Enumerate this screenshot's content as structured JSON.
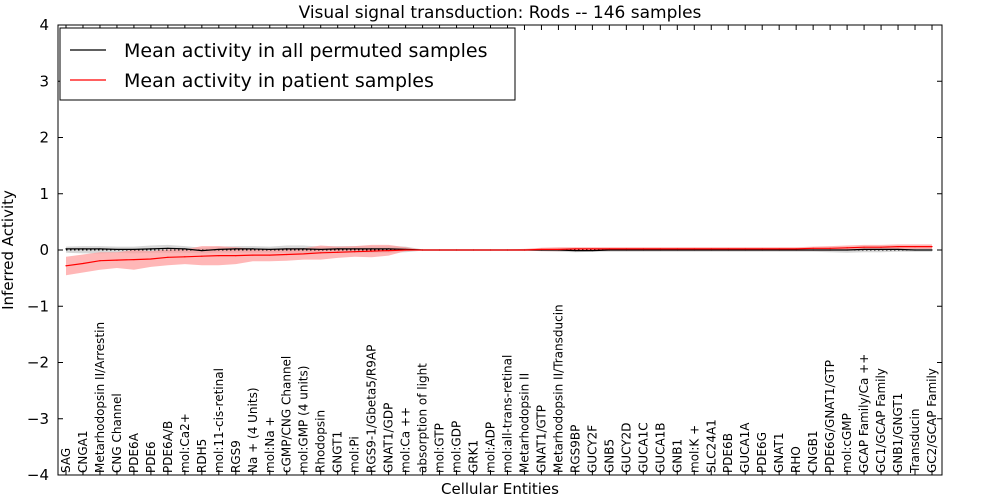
{
  "chart_data": {
    "type": "line",
    "title": "Visual signal transduction: Rods -- 146 samples",
    "xlabel": "Cellular Entities",
    "ylabel": "Inferred Activity",
    "ylim": [
      -4,
      4
    ],
    "yticks": [
      -4,
      -3,
      -2,
      -1,
      0,
      1,
      2,
      3,
      4
    ],
    "ytick_labels": [
      "−4",
      "−3",
      "−2",
      "−1",
      "0",
      "1",
      "2",
      "3",
      "4"
    ],
    "legend_position": "top-left",
    "categories": [
      "SAG",
      "CNGA1",
      "Metarhodopsin II/Arrestin",
      "CNG Channel",
      "PDE6A",
      "PDE6",
      "PDE6A/B",
      "mol:Ca2+",
      "RDH5",
      "mol:11-cis-retinal",
      "RGS9",
      "Na + (4 Units)",
      "mol:Na +",
      "cGMP/CNG Channel",
      "mol:GMP (4 units)",
      "Rhodopsin",
      "GNGT1",
      "mol:Pi",
      "RGS9-1/Gbeta5/R9AP",
      "GNAT1/GDP",
      "mol:Ca ++",
      "absorption of light",
      "mol:GTP",
      "mol:GDP",
      "GRK1",
      "mol:ADP",
      "mol:all-trans-retinal",
      "Metarhodopsin II",
      "GNAT1/GTP",
      "Metarhodopsin II/Transducin",
      "RGS9BP",
      "GUCY2F",
      "GNB5",
      "GUCY2D",
      "GUCA1C",
      "GUCA1B",
      "GNB1",
      "mol:K +",
      "SLC24A1",
      "PDE6B",
      "GUCA1A",
      "PDE6G",
      "GNAT1",
      "RHO",
      "CNGB1",
      "PDE6G/GNAT1/GTP",
      "mol:cGMP",
      "GCAP Family/Ca ++",
      "GC1/GCAP Family",
      "GNB1/GNGT1",
      "Transducin",
      "GC2/GCAP Family"
    ],
    "series": [
      {
        "name": "Mean activity in all permuted samples",
        "color": "#000000",
        "values": [
          0.02,
          0.02,
          0.02,
          0.01,
          0.01,
          0.02,
          0.03,
          0.02,
          -0.01,
          0.01,
          0.02,
          0.02,
          0.01,
          0.02,
          0.02,
          0.01,
          0.02,
          0.02,
          0.02,
          0.02,
          0.01,
          0.0,
          0.0,
          0.0,
          0.0,
          0.0,
          0.0,
          0.0,
          0.0,
          0.0,
          -0.01,
          -0.01,
          0.0,
          0.0,
          0.0,
          0.0,
          0.0,
          0.0,
          0.0,
          0.0,
          0.0,
          0.0,
          0.0,
          0.0,
          0.0,
          0.0,
          0.0,
          0.01,
          0.01,
          0.01,
          0.0,
          0.0
        ],
        "band": {
          "color": "#bbbbbb",
          "lower": [
            -0.05,
            -0.06,
            -0.06,
            -0.05,
            -0.06,
            -0.05,
            -0.05,
            -0.05,
            -0.06,
            -0.05,
            -0.05,
            -0.05,
            -0.05,
            -0.05,
            -0.05,
            -0.06,
            -0.05,
            -0.05,
            -0.05,
            -0.05,
            -0.04,
            -0.01,
            -0.01,
            -0.01,
            -0.01,
            -0.01,
            -0.01,
            -0.01,
            -0.02,
            -0.03,
            -0.04,
            -0.03,
            -0.03,
            -0.03,
            -0.03,
            -0.03,
            -0.03,
            -0.03,
            -0.03,
            -0.03,
            -0.03,
            -0.03,
            -0.03,
            -0.03,
            -0.03,
            -0.04,
            -0.05,
            -0.04,
            -0.04,
            -0.03,
            -0.03,
            -0.03
          ],
          "upper": [
            0.06,
            0.07,
            0.07,
            0.06,
            0.06,
            0.08,
            0.09,
            0.07,
            0.04,
            0.06,
            0.07,
            0.07,
            0.06,
            0.08,
            0.08,
            0.06,
            0.07,
            0.07,
            0.07,
            0.07,
            0.06,
            0.01,
            0.01,
            0.01,
            0.01,
            0.01,
            0.01,
            0.01,
            0.02,
            0.03,
            0.03,
            0.03,
            0.03,
            0.03,
            0.03,
            0.03,
            0.03,
            0.03,
            0.03,
            0.03,
            0.03,
            0.03,
            0.03,
            0.03,
            0.03,
            0.04,
            0.05,
            0.05,
            0.05,
            0.04,
            0.04,
            0.04
          ]
        }
      },
      {
        "name": "Mean activity in patient samples",
        "color": "#ff0000",
        "values": [
          -0.28,
          -0.24,
          -0.19,
          -0.18,
          -0.17,
          -0.16,
          -0.13,
          -0.12,
          -0.11,
          -0.1,
          -0.1,
          -0.09,
          -0.09,
          -0.08,
          -0.07,
          -0.05,
          -0.04,
          -0.03,
          -0.02,
          -0.01,
          0.0,
          0.0,
          0.0,
          0.0,
          0.0,
          0.0,
          0.0,
          0.0,
          0.01,
          0.01,
          0.02,
          0.02,
          0.02,
          0.02,
          0.02,
          0.02,
          0.02,
          0.02,
          0.02,
          0.02,
          0.02,
          0.02,
          0.02,
          0.02,
          0.03,
          0.03,
          0.04,
          0.05,
          0.05,
          0.06,
          0.06,
          0.06
        ],
        "band": {
          "color": "#ff9999",
          "lower": [
            -0.45,
            -0.4,
            -0.35,
            -0.32,
            -0.35,
            -0.3,
            -0.27,
            -0.25,
            -0.27,
            -0.27,
            -0.25,
            -0.2,
            -0.2,
            -0.19,
            -0.17,
            -0.17,
            -0.14,
            -0.12,
            -0.13,
            -0.1,
            -0.02,
            0.0,
            0.0,
            0.0,
            0.0,
            0.0,
            0.0,
            -0.01,
            -0.02,
            -0.02,
            -0.01,
            -0.01,
            -0.01,
            -0.01,
            -0.01,
            -0.01,
            -0.01,
            -0.01,
            -0.01,
            -0.01,
            -0.01,
            -0.01,
            -0.01,
            -0.01,
            -0.01,
            -0.01,
            0.0,
            0.01,
            0.02,
            0.02,
            0.02,
            0.02
          ],
          "upper": [
            -0.12,
            -0.08,
            -0.04,
            -0.04,
            0.0,
            -0.02,
            0.01,
            0.01,
            0.07,
            0.07,
            0.05,
            0.02,
            0.02,
            0.03,
            0.03,
            0.08,
            0.06,
            0.07,
            0.09,
            0.09,
            0.05,
            0.0,
            0.0,
            0.0,
            0.0,
            0.0,
            0.01,
            0.02,
            0.04,
            0.05,
            0.05,
            0.05,
            0.05,
            0.05,
            0.05,
            0.05,
            0.05,
            0.05,
            0.05,
            0.05,
            0.05,
            0.05,
            0.05,
            0.05,
            0.06,
            0.07,
            0.08,
            0.09,
            0.09,
            0.1,
            0.1,
            0.1
          ]
        }
      }
    ],
    "reference_line": {
      "y": 0,
      "style": "dotted",
      "color": "#000000"
    }
  }
}
